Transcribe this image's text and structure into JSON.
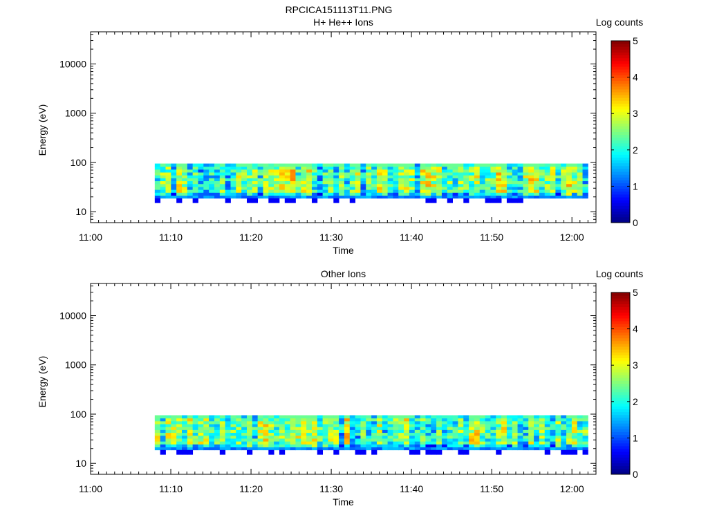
{
  "figure": {
    "filename": "RPCICA151113T11.PNG"
  },
  "colormap": {
    "name": "jet"
  },
  "chart_data": [
    {
      "type": "heatmap",
      "title": "H+ He++ Ions",
      "xlabel": "Time",
      "ylabel": "Energy (eV)",
      "xlim": [
        "11:00",
        "12:03"
      ],
      "ylim": [
        6,
        45000
      ],
      "yscale": "log",
      "x_ticks": [
        "11:00",
        "11:10",
        "11:20",
        "11:30",
        "11:40",
        "11:50",
        "12:00"
      ],
      "y_ticks": [
        "10",
        "100",
        "1000",
        "10000"
      ],
      "grid": false,
      "data_time_range": [
        "11:08",
        "12:02"
      ],
      "data_energy_range": [
        15,
        95
      ],
      "colorbar": {
        "label": "Log counts",
        "range": [
          0,
          5
        ],
        "ticks": [
          "0",
          "1",
          "2",
          "3",
          "4",
          "5"
        ]
      }
    },
    {
      "type": "heatmap",
      "title": "Other Ions",
      "xlabel": "Time",
      "ylabel": "Energy (eV)",
      "xlim": [
        "11:00",
        "12:03"
      ],
      "ylim": [
        6,
        45000
      ],
      "yscale": "log",
      "x_ticks": [
        "11:00",
        "11:10",
        "11:20",
        "11:30",
        "11:40",
        "11:50",
        "12:00"
      ],
      "y_ticks": [
        "10",
        "100",
        "1000",
        "10000"
      ],
      "grid": false,
      "data_time_range": [
        "11:08",
        "12:02"
      ],
      "data_energy_range": [
        15,
        95
      ],
      "colorbar": {
        "label": "Log counts",
        "range": [
          0,
          5
        ],
        "ticks": [
          "0",
          "1",
          "2",
          "3",
          "4",
          "5"
        ]
      }
    }
  ]
}
